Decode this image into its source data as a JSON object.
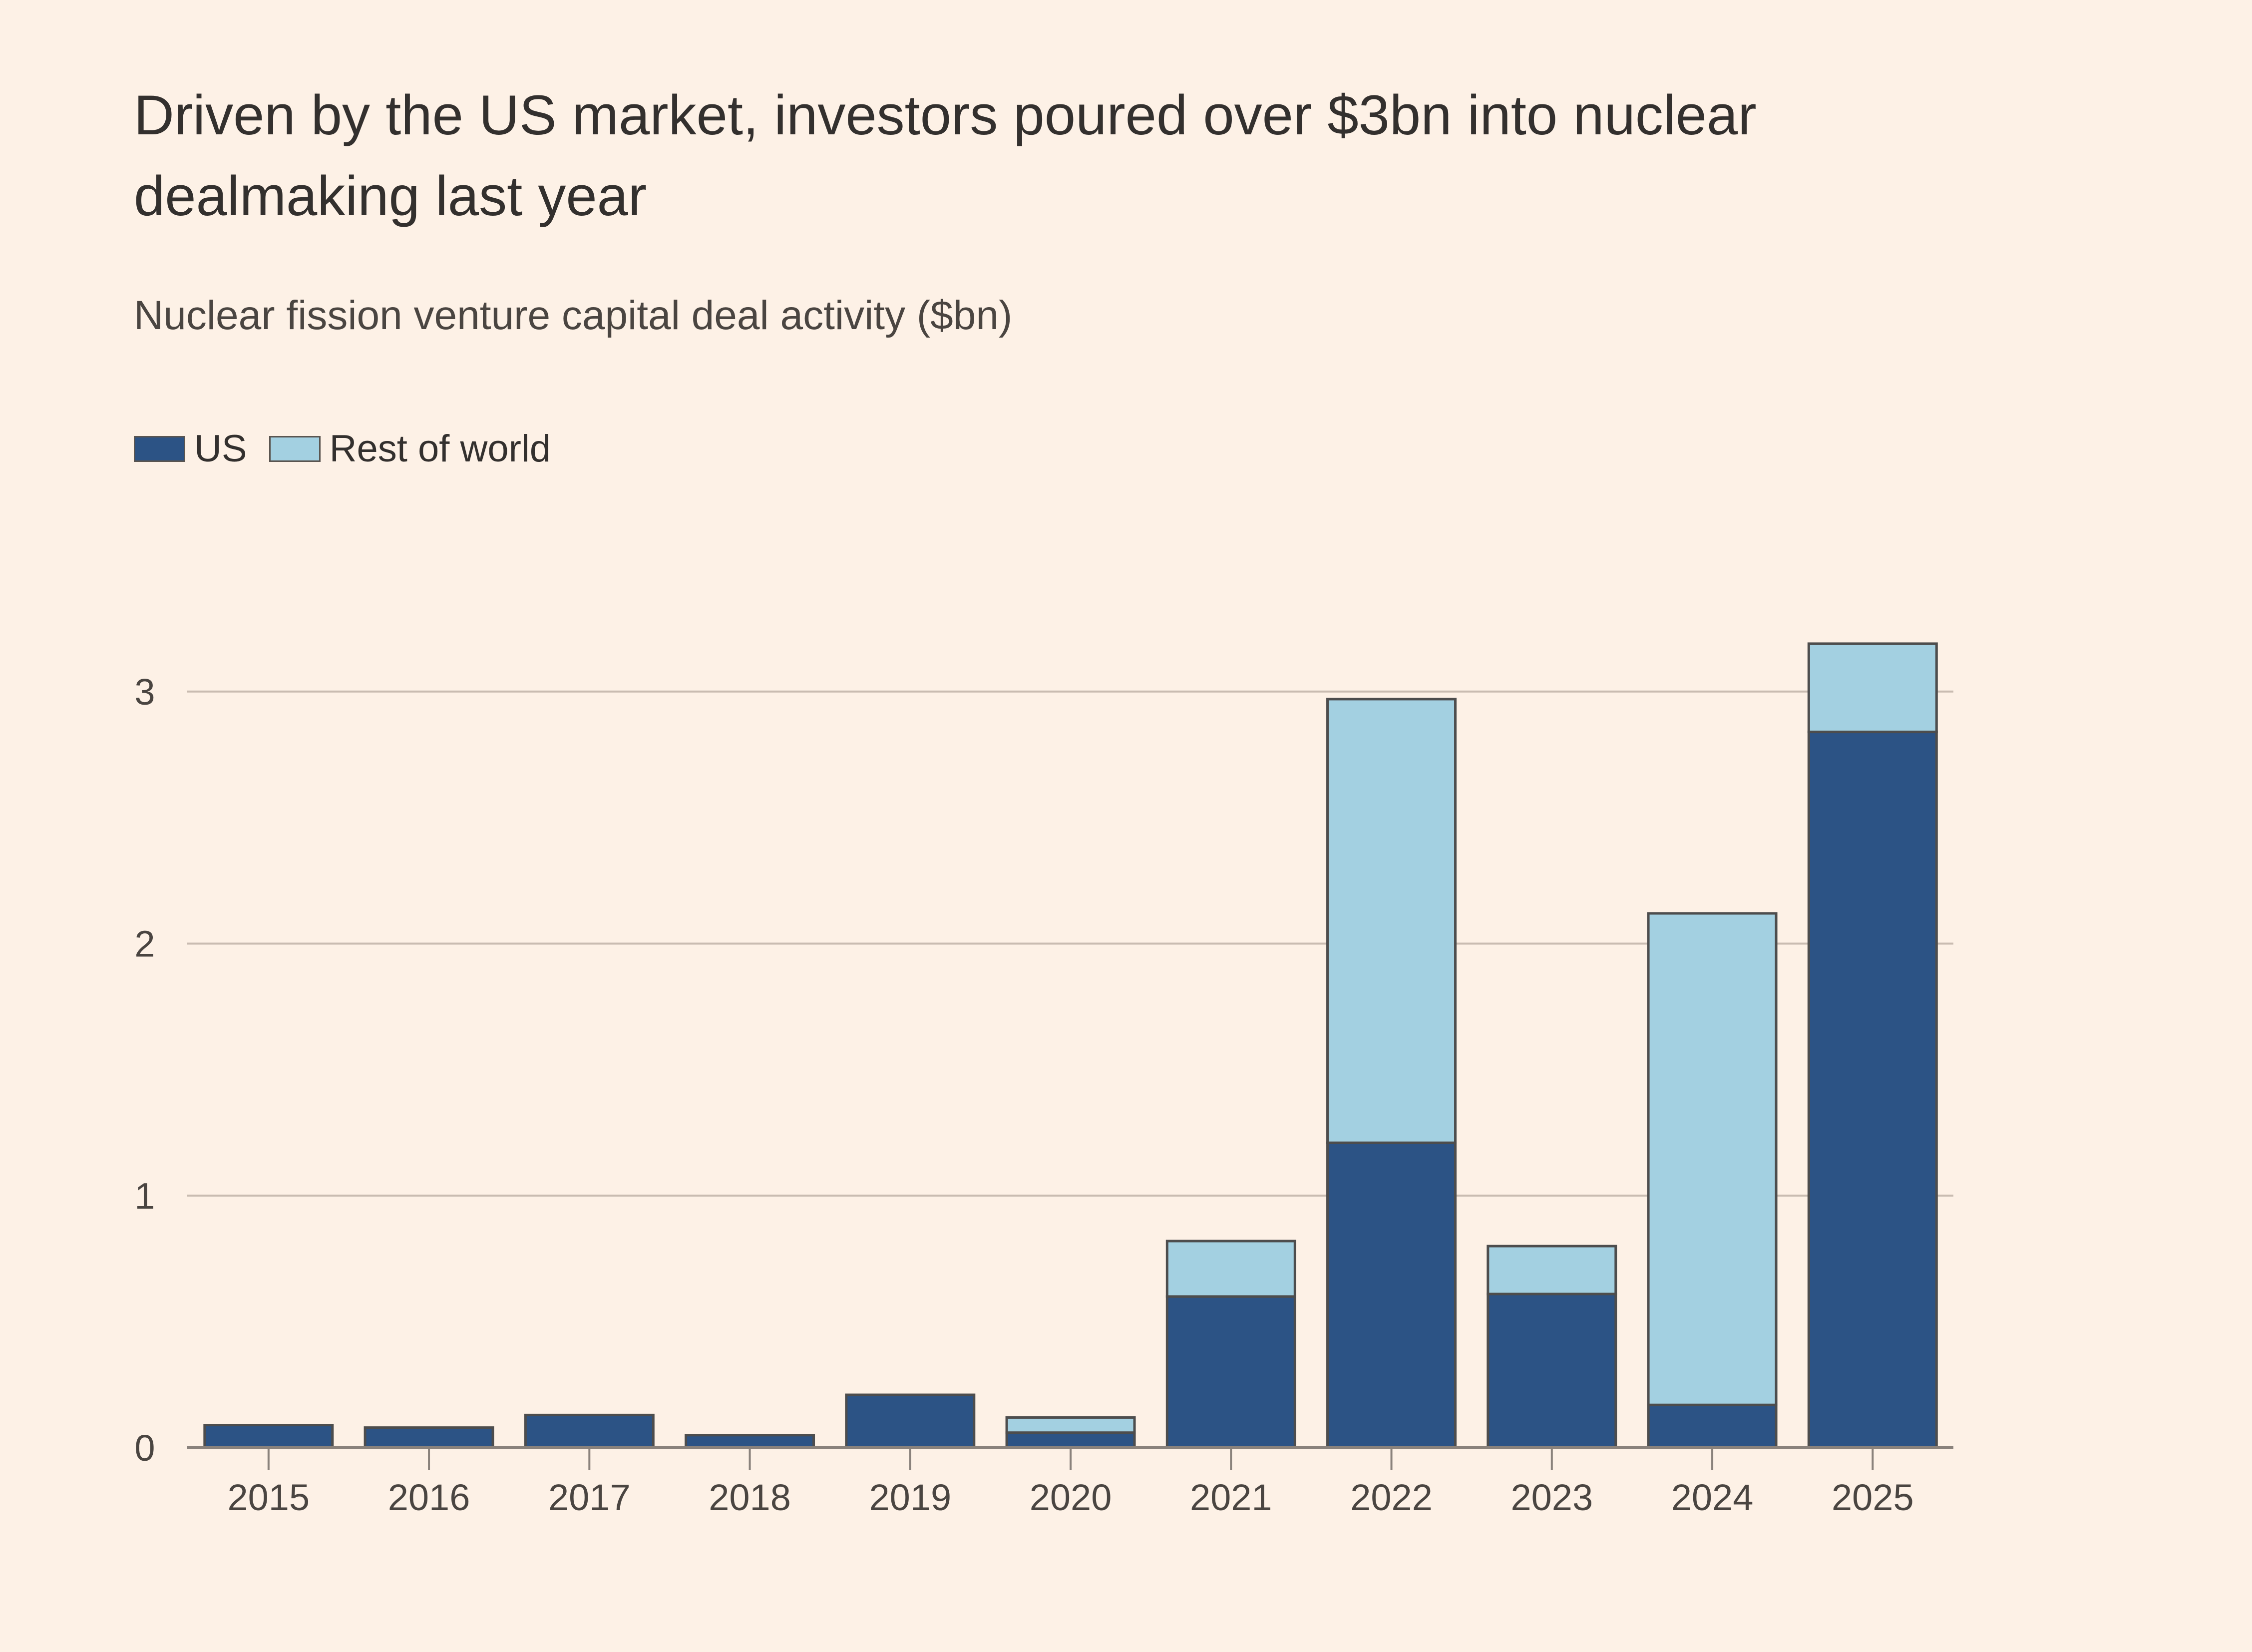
{
  "chart_data": {
    "type": "bar",
    "stacked": true,
    "title": "Driven by the US market, investors poured over $3bn into nuclear dealmaking last year",
    "subtitle": "Nuclear fission venture capital deal activity ($bn)",
    "xlabel": "",
    "ylabel": "",
    "ylim": [
      0,
      3.4
    ],
    "yticks": [
      0,
      1,
      2,
      3
    ],
    "grid": true,
    "legend_position": "top-left",
    "categories": [
      "2015",
      "2016",
      "2017",
      "2018",
      "2019",
      "2020",
      "2021",
      "2022",
      "2023",
      "2024",
      "2025"
    ],
    "series": [
      {
        "name": "US",
        "color": "#2c5385",
        "values": [
          0.09,
          0.08,
          0.13,
          0.05,
          0.21,
          0.06,
          0.6,
          1.21,
          0.61,
          0.17,
          2.84
        ]
      },
      {
        "name": "Rest of world",
        "color": "#a3d0e1",
        "values": [
          0.0,
          0.0,
          0.0,
          0.0,
          0.0,
          0.06,
          0.22,
          1.76,
          0.19,
          1.95,
          0.35
        ]
      }
    ]
  },
  "legend": [
    {
      "label": "US",
      "color": "#2c5385"
    },
    {
      "label": "Rest of world",
      "color": "#a3d0e1"
    }
  ]
}
